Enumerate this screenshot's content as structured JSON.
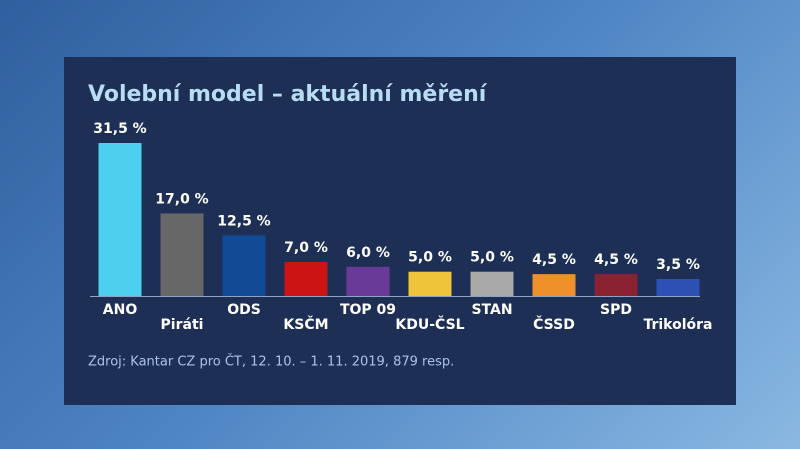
{
  "chart_data": {
    "type": "bar",
    "title": "Volební model – aktuální měření",
    "categories": [
      "ANO",
      "Piráti",
      "ODS",
      "KSČM",
      "TOP 09",
      "KDU-ČSL",
      "STAN",
      "ČSSD",
      "SPD",
      "Trikolóra"
    ],
    "values": [
      31.5,
      17.0,
      12.5,
      7.0,
      6.0,
      5.0,
      5.0,
      4.5,
      4.5,
      3.5
    ],
    "value_labels": [
      "31,5 %",
      "17,0 %",
      "12,5 %",
      "7,0 %",
      "6,0 %",
      "5,0 %",
      "5,0 %",
      "4,5 %",
      "4,5 %",
      "3,5 %"
    ],
    "colors": [
      "#4dd0ee",
      "#676767",
      "#124a96",
      "#cc1414",
      "#6a3a99",
      "#f0c43a",
      "#a8a8a8",
      "#f0902a",
      "#8b2232",
      "#2e4fb3"
    ],
    "source": "Zdroj: Kantar CZ pro ČT, 12. 10. – 1. 11. 2019, 879 resp."
  }
}
